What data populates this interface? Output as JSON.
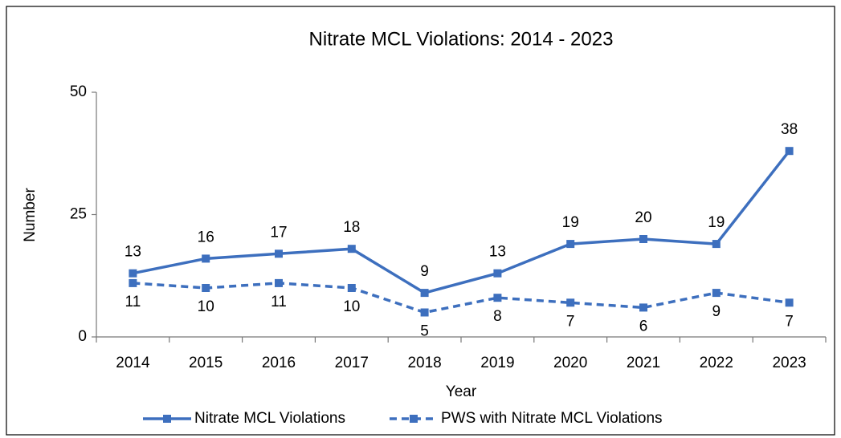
{
  "chart_data": {
    "type": "line",
    "title": "Nitrate MCL Violations: 2014 - 2023",
    "x_label": "Year",
    "y_label": "Number",
    "categories": [
      "2014",
      "2015",
      "2016",
      "2017",
      "2018",
      "2019",
      "2020",
      "2021",
      "2022",
      "2023"
    ],
    "series": [
      {
        "name": "Nitrate MCL Violations",
        "color": "#3d6fbe",
        "dash": false,
        "label_position": "above",
        "values": [
          13,
          16,
          17,
          18,
          9,
          13,
          19,
          20,
          19,
          38
        ]
      },
      {
        "name": "PWS with Nitrate MCL Violations",
        "color": "#3d6fbe",
        "dash": true,
        "label_position": "below",
        "values": [
          11,
          10,
          11,
          10,
          5,
          8,
          7,
          6,
          9,
          7
        ]
      }
    ],
    "ylim": [
      0,
      50
    ],
    "yticks": [
      0,
      25,
      50
    ],
    "grid": false,
    "legend": "bottom"
  }
}
